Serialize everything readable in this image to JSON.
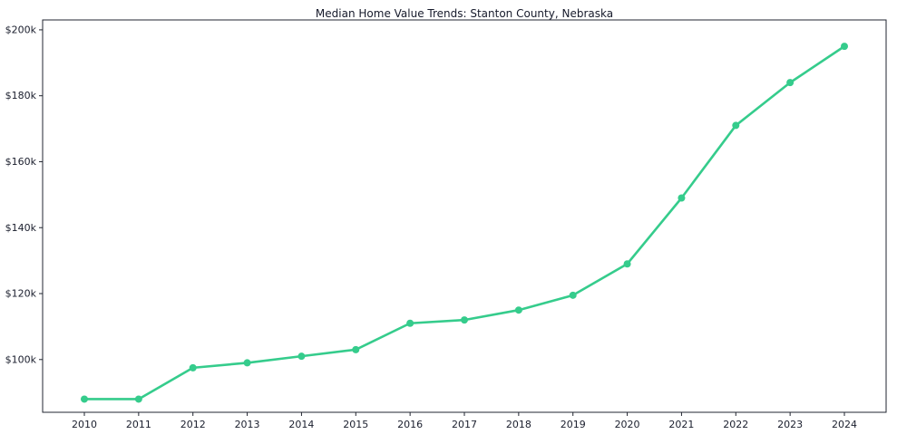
{
  "chart_data": {
    "type": "line",
    "title": "Median Home Value Trends: Stanton County, Nebraska",
    "series_name": "Median Home Value",
    "categories": [
      "2010",
      "2011",
      "2012",
      "2013",
      "2014",
      "2015",
      "2016",
      "2017",
      "2018",
      "2019",
      "2020",
      "2021",
      "2022",
      "2023",
      "2024"
    ],
    "values": [
      88000,
      88000,
      97500,
      99000,
      101000,
      103000,
      111000,
      112000,
      115000,
      119500,
      129000,
      149000,
      171000,
      184000,
      195000
    ],
    "xlabel": "",
    "ylabel": "",
    "ylim": [
      84000,
      203000
    ],
    "y_ticks": [
      {
        "value": 100000,
        "label": "$100k"
      },
      {
        "value": 120000,
        "label": "$120k"
      },
      {
        "value": 140000,
        "label": "$140k"
      },
      {
        "value": 160000,
        "label": "$160k"
      },
      {
        "value": 180000,
        "label": "$180k"
      },
      {
        "value": 200000,
        "label": "$200k"
      }
    ],
    "grid": false,
    "legend": "none",
    "marker": "circle",
    "colors": {
      "line": "#35cc8c",
      "marker": "#35cc8c",
      "axis": "#212530",
      "text": "#1a1e2d",
      "background": "#ffffff"
    }
  }
}
